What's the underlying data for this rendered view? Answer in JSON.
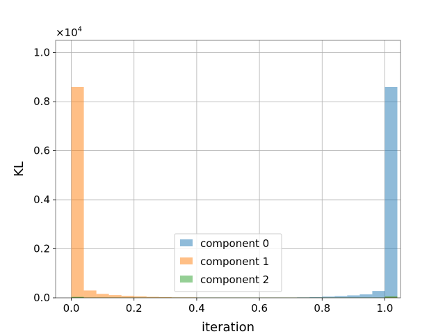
{
  "chart_data": {
    "type": "histogram",
    "xlabel": "iteration",
    "ylabel": "KL",
    "y_offset_label": "×10",
    "y_offset_exponent": "4",
    "y_multiplier": 10000,
    "xlim": [
      -0.05,
      1.05
    ],
    "ylim": [
      0,
      1.05
    ],
    "xticks": [
      "0.0",
      "0.2",
      "0.4",
      "0.6",
      "0.8",
      "1.0"
    ],
    "yticks": [
      "0.0",
      "0.2",
      "0.4",
      "0.6",
      "0.8",
      "1.0"
    ],
    "grid": true,
    "legend_position": "lower-center",
    "bin_width": 0.04,
    "bin_start": 0.0,
    "series": [
      {
        "name": "component 0",
        "color": "#1f77b4",
        "values": [
          0.003,
          0.001,
          0.001,
          0.001,
          0.001,
          0.001,
          0.001,
          0.001,
          0.001,
          0.001,
          0.001,
          0.001,
          0.001,
          0.001,
          0.001,
          0.001,
          0.001,
          0.001,
          0.002,
          0.003,
          0.005,
          0.007,
          0.01,
          0.014,
          0.028,
          0.86
        ]
      },
      {
        "name": "component 1",
        "color": "#ff7f0e",
        "values": [
          0.86,
          0.03,
          0.016,
          0.011,
          0.008,
          0.006,
          0.004,
          0.003,
          0.002,
          0.002,
          0.001,
          0.001,
          0.001,
          0.001,
          0.001,
          0.001,
          0.001,
          0.001,
          0.001,
          0.001,
          0.001,
          0.001,
          0.001,
          0.001,
          0.001,
          0.004
        ]
      },
      {
        "name": "component 2",
        "color": "#2ca02c",
        "values": [
          0.004,
          0.001,
          0.001,
          0.001,
          0.001,
          0.001,
          0.001,
          0.001,
          0.001,
          0.001,
          0.001,
          0.001,
          0.001,
          0.001,
          0.001,
          0.001,
          0.001,
          0.001,
          0.001,
          0.001,
          0.001,
          0.001,
          0.001,
          0.001,
          0.001,
          0.006
        ]
      }
    ]
  }
}
